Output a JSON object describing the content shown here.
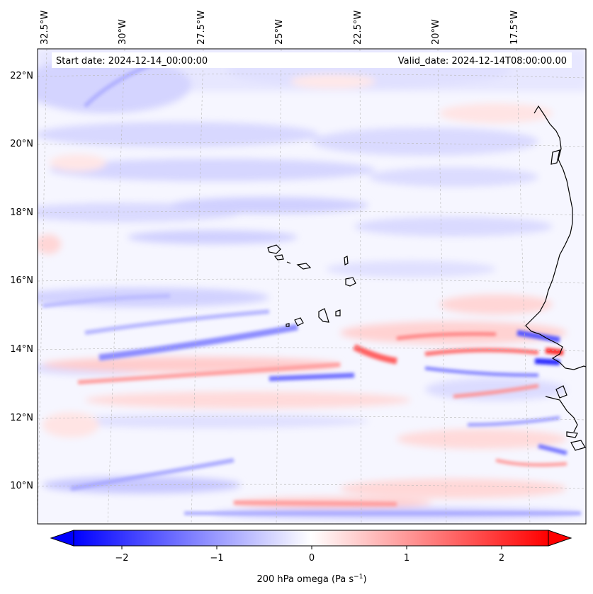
{
  "header": {
    "start_date": "Start date: 2024-12-14_00:00:00",
    "valid_date": "Valid_date: 2024-12-14T08:00:00.00"
  },
  "map": {
    "lon_labels": [
      "32.5°W",
      "30°W",
      "27.5°W",
      "25°W",
      "22.5°W",
      "20°W",
      "17.5°W"
    ],
    "lat_labels": [
      "22°N",
      "20°N",
      "18°N",
      "16°N",
      "14°N",
      "12°N",
      "10°N"
    ],
    "gridlines": "dashed",
    "coastline_color": "#000000"
  },
  "colorbar": {
    "label": "200 hPa omega (Pa s",
    "label_unit_sup": "−1",
    "label_close": ")",
    "ticks": [
      "−2",
      "−1",
      "0",
      "1",
      "2"
    ],
    "colormap": "bwr",
    "low_color": "#0000ff",
    "mid_color": "#ffffff",
    "high_color": "#ff0000",
    "extend": "both"
  }
}
